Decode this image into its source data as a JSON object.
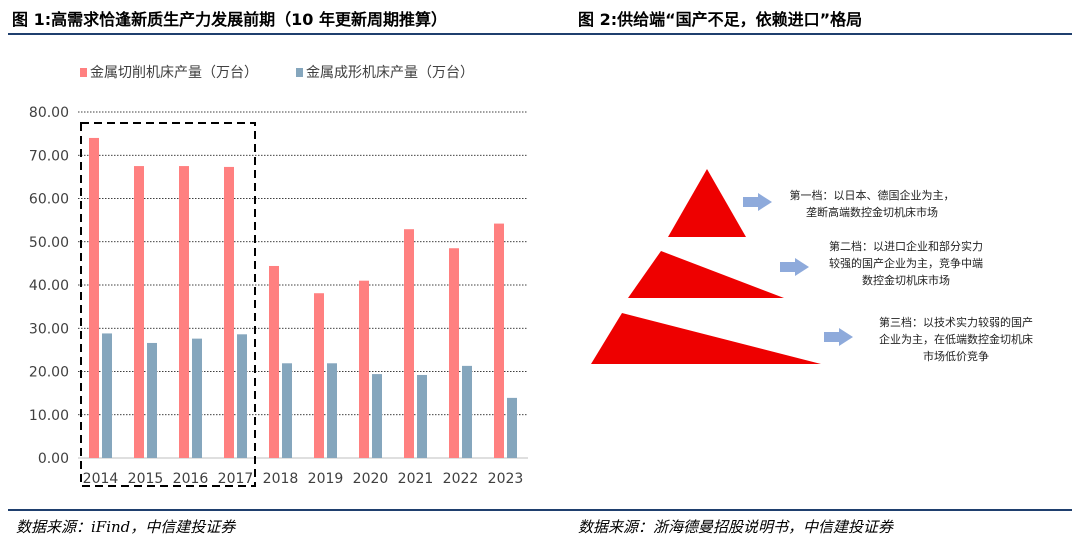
{
  "left_figure": {
    "title": "图 1:高需求恰逢新质生产力发展前期（10 年更新周期推算）",
    "source": "数据来源：iFind，中信建投证券"
  },
  "right_figure": {
    "title": "图 2:供给端“国产不足，依赖进口”格局",
    "source": "数据来源：浙海德曼招股说明书，中信建投证券",
    "tiers": [
      {
        "lines": [
          "第一档：以日本、德国企业为主，",
          "垄断高端数控金切机床市场"
        ]
      },
      {
        "lines": [
          "第二档：以进口企业和部分实力",
          "较强的国产企业为主，竞争中端",
          "数控金切机床市场"
        ]
      },
      {
        "lines": [
          "第三档：以技术实力较弱的国产",
          "企业为主，在低端数控金切机床",
          "市场低价竞争"
        ]
      }
    ],
    "colors": {
      "pyramid": "#ee0000",
      "arrow": "#8eaadb"
    }
  },
  "chart_data": {
    "type": "bar",
    "categories": [
      "2014",
      "2015",
      "2016",
      "2017",
      "2018",
      "2019",
      "2020",
      "2021",
      "2022",
      "2023"
    ],
    "series": [
      {
        "name": "金属切削机床产量（万台）",
        "color": "#ff8080",
        "values": [
          74.0,
          67.5,
          67.5,
          67.3,
          44.4,
          38.1,
          41.0,
          52.9,
          48.5,
          54.2
        ]
      },
      {
        "name": "金属成形机床产量（万台）",
        "color": "#85a6bd",
        "values": [
          28.8,
          26.6,
          27.6,
          28.6,
          21.9,
          21.9,
          19.4,
          19.2,
          21.3,
          13.9
        ]
      }
    ],
    "yticks": [
      "0.00",
      "10.00",
      "20.00",
      "30.00",
      "40.00",
      "50.00",
      "60.00",
      "70.00",
      "80.00"
    ],
    "ylim": [
      0,
      80
    ],
    "grid": true,
    "legend": "top",
    "highlight": {
      "from": "2014",
      "to": "2017",
      "style": "dashed-box"
    }
  }
}
